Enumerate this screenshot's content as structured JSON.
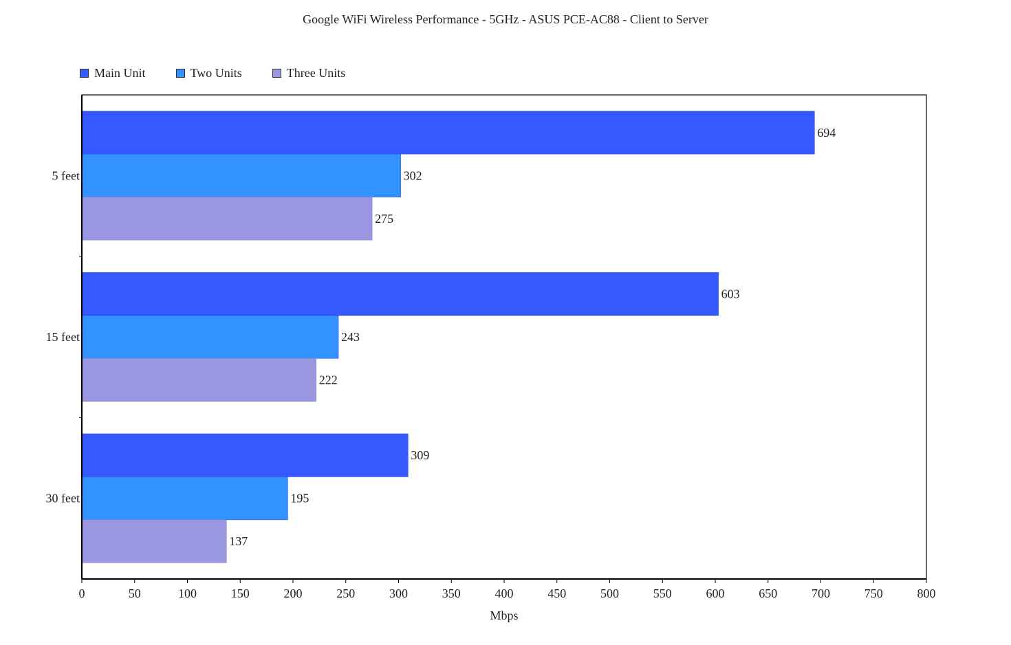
{
  "chart_data": {
    "type": "bar",
    "orientation": "horizontal",
    "title": "Google WiFi Wireless Performance - 5GHz - ASUS PCE-AC88 - Client to Server",
    "xlabel": "Mbps",
    "ylabel": "",
    "categories": [
      "5 feet",
      "15 feet",
      "30 feet"
    ],
    "series": [
      {
        "name": "Main Unit",
        "color": "#3559ff",
        "values": [
          694,
          603,
          309
        ]
      },
      {
        "name": "Two Units",
        "color": "#3292ff",
        "values": [
          302,
          243,
          195
        ]
      },
      {
        "name": "Three Units",
        "color": "#9b96e0",
        "values": [
          275,
          222,
          137
        ]
      }
    ],
    "xlim": [
      0,
      800
    ],
    "xticks": [
      0,
      50,
      100,
      150,
      200,
      250,
      300,
      350,
      400,
      450,
      500,
      550,
      600,
      650,
      700,
      750,
      800
    ],
    "grid": false,
    "legend_position": "top-left"
  }
}
